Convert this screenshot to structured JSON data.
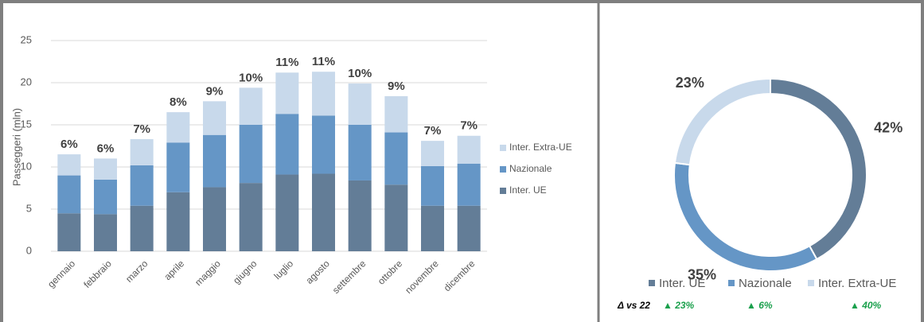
{
  "chart_data": [
    {
      "type": "bar",
      "stacked": true,
      "y_label": "Passeggeri (mln)",
      "categories": [
        "gennaio",
        "febbraio",
        "marzo",
        "aprile",
        "maggio",
        "giugno",
        "luglio",
        "agosto",
        "settembre",
        "ottobre",
        "novembre",
        "dicembre"
      ],
      "series": [
        {
          "name": "Inter. UE",
          "color": "#637d97",
          "values": [
            4.5,
            4.4,
            5.4,
            7.0,
            7.6,
            8.1,
            9.1,
            9.2,
            8.4,
            7.9,
            5.4,
            5.4
          ]
        },
        {
          "name": "Nazionale",
          "color": "#6596c6",
          "values": [
            4.5,
            4.1,
            4.8,
            5.9,
            6.2,
            6.9,
            7.2,
            6.9,
            6.6,
            6.2,
            4.7,
            5.0
          ]
        },
        {
          "name": "Inter. Extra-UE",
          "color": "#c8d9eb",
          "values": [
            2.5,
            2.5,
            3.1,
            3.6,
            4.0,
            4.4,
            4.9,
            5.2,
            4.9,
            4.3,
            3.0,
            3.3
          ]
        }
      ],
      "top_labels": {
        "values": [
          6,
          6,
          7,
          8,
          9,
          10,
          11,
          11,
          10,
          9,
          7,
          7
        ],
        "value_labels": [
          "6%",
          "6%",
          "7%",
          "8%",
          "9%",
          "10%",
          "11%",
          "11%",
          "10%",
          "9%",
          "7%",
          "7%"
        ]
      },
      "ylim": [
        0,
        25
      ],
      "yticks": [
        0,
        5,
        10,
        15,
        20,
        25
      ],
      "grid": true
    },
    {
      "type": "donut",
      "categories": [
        "Inter. UE",
        "Nazionale",
        "Inter. Extra-UE"
      ],
      "colors": [
        "#637d97",
        "#6596c6",
        "#c8d9eb"
      ],
      "values": [
        42,
        35,
        23
      ],
      "value_labels": [
        "42%",
        "35%",
        "23%"
      ],
      "delta_label": "Δ vs 22",
      "deltas": {
        "values": [
          23,
          6,
          40
        ],
        "value_labels": [
          "▲ 23%",
          "▲ 6%",
          "▲ 40%"
        ]
      }
    }
  ]
}
